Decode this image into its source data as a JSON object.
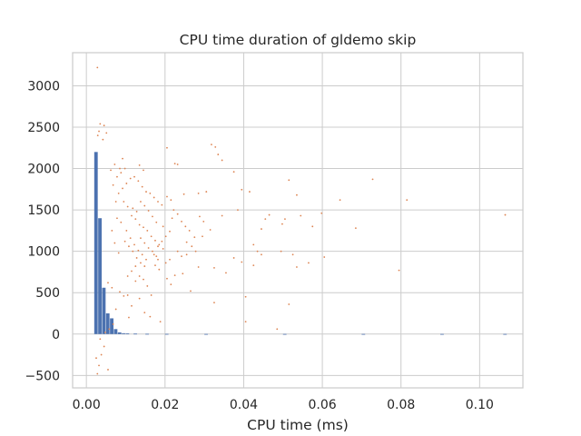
{
  "chart_data": {
    "type": "scatter",
    "title": "CPU time duration of gldemo skip",
    "xlabel": "CPU time (ms)",
    "ylabel": "",
    "xlim": [
      -0.0035,
      0.111
    ],
    "ylim": [
      -650,
      3400
    ],
    "grid": true,
    "legend": "none",
    "x_ticks": [
      0.0,
      0.02,
      0.04,
      0.06,
      0.08,
      0.1
    ],
    "x_tick_labels": [
      "0.00",
      "0.02",
      "0.04",
      "0.06",
      "0.08",
      "0.10"
    ],
    "y_ticks": [
      -500,
      0,
      500,
      1000,
      1500,
      2000,
      2500,
      3000
    ],
    "y_tick_labels": [
      "−500",
      "0",
      "500",
      "1000",
      "1500",
      "2000",
      "2500",
      "3000"
    ],
    "colors": {
      "histogram": "#4c72b0",
      "scatter": "#dd8452",
      "grid": "#cccccc",
      "frame": "#cccccc"
    },
    "series": [
      {
        "type": "bar",
        "bin_width": 0.001,
        "bins": [
          {
            "x": 0.0025,
            "y": 2200
          },
          {
            "x": 0.0035,
            "y": 1400
          },
          {
            "x": 0.0045,
            "y": 560
          },
          {
            "x": 0.0055,
            "y": 250
          },
          {
            "x": 0.0065,
            "y": 190
          },
          {
            "x": 0.0075,
            "y": 60
          },
          {
            "x": 0.0085,
            "y": 20
          },
          {
            "x": 0.0095,
            "y": 10
          },
          {
            "x": 0.0105,
            "y": 8
          },
          {
            "x": 0.0125,
            "y": 5
          },
          {
            "x": 0.0155,
            "y": 3
          },
          {
            "x": 0.0205,
            "y": 2
          },
          {
            "x": 0.0305,
            "y": 1
          },
          {
            "x": 0.0505,
            "y": 1
          },
          {
            "x": 0.0705,
            "y": 1
          },
          {
            "x": 0.0905,
            "y": 1
          },
          {
            "x": 0.1065,
            "y": 1
          }
        ]
      },
      {
        "type": "scatter",
        "points": [
          [
            0.0028,
            3220
          ],
          [
            0.0035,
            2540
          ],
          [
            0.0045,
            2520
          ],
          [
            0.0032,
            2450
          ],
          [
            0.0051,
            2430
          ],
          [
            0.0029,
            2400
          ],
          [
            0.0042,
            2350
          ],
          [
            0.0205,
            2250
          ],
          [
            0.0318,
            2290
          ],
          [
            0.0328,
            2260
          ],
          [
            0.0092,
            2120
          ],
          [
            0.0085,
            2000
          ],
          [
            0.0225,
            2060
          ],
          [
            0.0232,
            2050
          ],
          [
            0.0335,
            2170
          ],
          [
            0.0345,
            2100
          ],
          [
            0.0135,
            2040
          ],
          [
            0.0145,
            1980
          ],
          [
            0.0375,
            1960
          ],
          [
            0.0395,
            1745
          ],
          [
            0.0415,
            1720
          ],
          [
            0.0248,
            1690
          ],
          [
            0.0285,
            1700
          ],
          [
            0.0305,
            1720
          ],
          [
            0.0205,
            1660
          ],
          [
            0.0215,
            1620
          ],
          [
            0.0515,
            1860
          ],
          [
            0.0535,
            1680
          ],
          [
            0.0645,
            1620
          ],
          [
            0.0728,
            1870
          ],
          [
            0.0815,
            1620
          ],
          [
            0.0598,
            1460
          ],
          [
            0.1065,
            1440
          ],
          [
            0.0455,
            1390
          ],
          [
            0.0465,
            1440
          ],
          [
            0.0385,
            1500
          ],
          [
            0.0345,
            1430
          ],
          [
            0.0498,
            1330
          ],
          [
            0.0505,
            1390
          ],
          [
            0.0545,
            1430
          ],
          [
            0.0445,
            1270
          ],
          [
            0.0575,
            1300
          ],
          [
            0.0685,
            1280
          ],
          [
            0.0315,
            1260
          ],
          [
            0.0295,
            1180
          ],
          [
            0.0255,
            1110
          ],
          [
            0.0275,
            1170
          ],
          [
            0.0425,
            1080
          ],
          [
            0.0435,
            1000
          ],
          [
            0.0445,
            960
          ],
          [
            0.0495,
            1000
          ],
          [
            0.0375,
            920
          ],
          [
            0.0395,
            870
          ],
          [
            0.0425,
            830
          ],
          [
            0.0525,
            960
          ],
          [
            0.0535,
            810
          ],
          [
            0.0565,
            860
          ],
          [
            0.0605,
            930
          ],
          [
            0.0795,
            770
          ],
          [
            0.0355,
            740
          ],
          [
            0.0325,
            800
          ],
          [
            0.0285,
            810
          ],
          [
            0.0255,
            960
          ],
          [
            0.0225,
            710
          ],
          [
            0.0245,
            730
          ],
          [
            0.0205,
            670
          ],
          [
            0.0185,
            780
          ],
          [
            0.0175,
            830
          ],
          [
            0.0155,
            580
          ],
          [
            0.0165,
            470
          ],
          [
            0.0215,
            600
          ],
          [
            0.0265,
            520
          ],
          [
            0.0325,
            380
          ],
          [
            0.0405,
            450
          ],
          [
            0.0515,
            360
          ],
          [
            0.0405,
            150
          ],
          [
            0.0485,
            60
          ],
          [
            0.0125,
            640
          ],
          [
            0.0135,
            430
          ],
          [
            0.0095,
            460
          ],
          [
            0.0105,
            470
          ],
          [
            0.0085,
            510
          ],
          [
            0.0075,
            300
          ],
          [
            0.0065,
            560
          ],
          [
            0.0055,
            620
          ],
          [
            0.0055,
            -430
          ],
          [
            0.0028,
            -480
          ],
          [
            0.0032,
            -380
          ],
          [
            0.0025,
            -290
          ],
          [
            0.0038,
            -250
          ],
          [
            0.0045,
            -150
          ],
          [
            0.0035,
            -60
          ],
          [
            0.0048,
            20
          ],
          [
            0.0058,
            60
          ],
          [
            0.0068,
            120
          ],
          [
            0.0108,
            200
          ],
          [
            0.0115,
            340
          ],
          [
            0.0148,
            260
          ],
          [
            0.0162,
            210
          ],
          [
            0.0188,
            150
          ],
          [
            0.0115,
            1430
          ],
          [
            0.0125,
            1390
          ],
          [
            0.0135,
            1320
          ],
          [
            0.0145,
            1290
          ],
          [
            0.0155,
            1250
          ],
          [
            0.0165,
            1180
          ],
          [
            0.0175,
            1130
          ],
          [
            0.0185,
            1080
          ],
          [
            0.0195,
            1030
          ],
          [
            0.0102,
            1250
          ],
          [
            0.0112,
            1160
          ],
          [
            0.0122,
            1080
          ],
          [
            0.0132,
            1010
          ],
          [
            0.0142,
            960
          ],
          [
            0.0152,
            900
          ],
          [
            0.0095,
            1600
          ],
          [
            0.0105,
            1540
          ],
          [
            0.0118,
            1520
          ],
          [
            0.0128,
            1480
          ],
          [
            0.0138,
            1600
          ],
          [
            0.0148,
            1550
          ],
          [
            0.0158,
            1490
          ],
          [
            0.0168,
            1420
          ],
          [
            0.0178,
            1350
          ],
          [
            0.0195,
            1300
          ],
          [
            0.0082,
            1700
          ],
          [
            0.0092,
            1760
          ],
          [
            0.0102,
            1820
          ],
          [
            0.0112,
            1880
          ],
          [
            0.0122,
            1900
          ],
          [
            0.0132,
            1850
          ],
          [
            0.0142,
            1780
          ],
          [
            0.0152,
            1720
          ],
          [
            0.0162,
            1700
          ],
          [
            0.0172,
            1650
          ],
          [
            0.0182,
            1600
          ],
          [
            0.0192,
            1560
          ],
          [
            0.0078,
            1400
          ],
          [
            0.0088,
            1350
          ],
          [
            0.0098,
            1120
          ],
          [
            0.0108,
            1060
          ],
          [
            0.0118,
            1000
          ],
          [
            0.0128,
            920
          ],
          [
            0.0138,
            860
          ],
          [
            0.0148,
            820
          ],
          [
            0.0078,
            1900
          ],
          [
            0.0088,
            1950
          ],
          [
            0.0098,
            2000
          ],
          [
            0.0072,
            2050
          ],
          [
            0.0062,
            1980
          ],
          [
            0.0068,
            1800
          ],
          [
            0.0075,
            1600
          ],
          [
            0.0065,
            1250
          ],
          [
            0.0072,
            1100
          ],
          [
            0.0082,
            980
          ],
          [
            0.0222,
            1500
          ],
          [
            0.0232,
            1450
          ],
          [
            0.0242,
            1360
          ],
          [
            0.0252,
            1300
          ],
          [
            0.0262,
            1250
          ],
          [
            0.0212,
            1240
          ],
          [
            0.0202,
            1180
          ],
          [
            0.0192,
            1120
          ],
          [
            0.0182,
            1060
          ],
          [
            0.0232,
            1000
          ],
          [
            0.0242,
            940
          ],
          [
            0.0212,
            900
          ],
          [
            0.0202,
            860
          ],
          [
            0.0182,
            900
          ],
          [
            0.0172,
            960
          ],
          [
            0.0288,
            1420
          ],
          [
            0.0298,
            1360
          ],
          [
            0.0268,
            1060
          ],
          [
            0.0278,
            1000
          ],
          [
            0.0218,
            1400
          ],
          [
            0.0138,
            1160
          ],
          [
            0.0148,
            1100
          ],
          [
            0.0158,
            1040
          ],
          [
            0.0168,
            1000
          ],
          [
            0.0178,
            940
          ],
          [
            0.0105,
            700
          ],
          [
            0.0115,
            760
          ],
          [
            0.0125,
            820
          ],
          [
            0.0135,
            700
          ],
          [
            0.0145,
            660
          ]
        ]
      }
    ]
  }
}
